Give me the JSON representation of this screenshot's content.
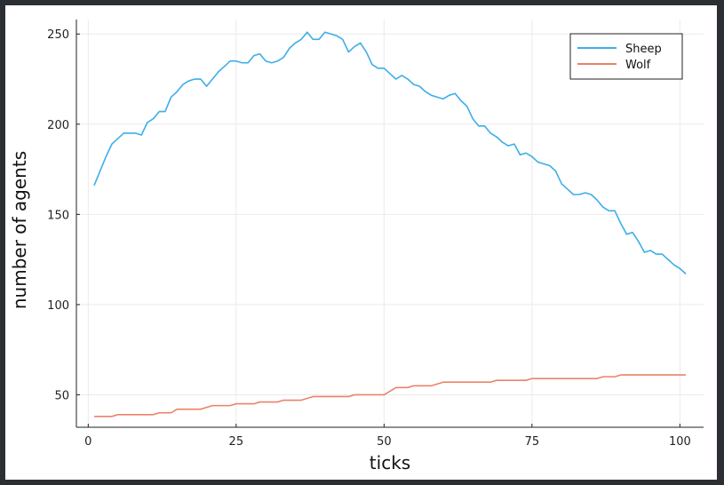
{
  "chart_data": {
    "type": "line",
    "title": "",
    "xlabel": "ticks",
    "ylabel": "number of agents",
    "xlim": [
      -2,
      104
    ],
    "ylim": [
      32,
      258
    ],
    "xticks": [
      0,
      25,
      50,
      75,
      100
    ],
    "yticks": [
      50,
      100,
      150,
      200,
      250
    ],
    "grid": true,
    "legend_position": "top-right",
    "x": [
      1,
      2,
      3,
      4,
      5,
      6,
      7,
      8,
      9,
      10,
      11,
      12,
      13,
      14,
      15,
      16,
      17,
      18,
      19,
      20,
      21,
      22,
      23,
      24,
      25,
      26,
      27,
      28,
      29,
      30,
      31,
      32,
      33,
      34,
      35,
      36,
      37,
      38,
      39,
      40,
      41,
      42,
      43,
      44,
      45,
      46,
      47,
      48,
      49,
      50,
      51,
      52,
      53,
      54,
      55,
      56,
      57,
      58,
      59,
      60,
      61,
      62,
      63,
      64,
      65,
      66,
      67,
      68,
      69,
      70,
      71,
      72,
      73,
      74,
      75,
      76,
      77,
      78,
      79,
      80,
      81,
      82,
      83,
      84,
      85,
      86,
      87,
      88,
      89,
      90,
      91,
      92,
      93,
      94,
      95,
      96,
      97,
      98,
      99,
      100,
      101
    ],
    "series": [
      {
        "name": "Sheep",
        "color": "#3daee9",
        "values": [
          166,
          174,
          182,
          189,
          192,
          195,
          195,
          195,
          194,
          201,
          203,
          207,
          207,
          215,
          218,
          222,
          224,
          225,
          225,
          221,
          225,
          229,
          232,
          235,
          235,
          234,
          234,
          238,
          239,
          235,
          234,
          235,
          237,
          242,
          245,
          247,
          251,
          247,
          247,
          251,
          250,
          249,
          247,
          240,
          243,
          245,
          240,
          233,
          231,
          231,
          228,
          225,
          227,
          225,
          222,
          221,
          218,
          216,
          215,
          214,
          216,
          217,
          213,
          210,
          203,
          199,
          199,
          195,
          193,
          190,
          188,
          189,
          183,
          184,
          182,
          179,
          178,
          177,
          174,
          167,
          164,
          161,
          161,
          162,
          161,
          158,
          154,
          152,
          152,
          145,
          139,
          140,
          135,
          129,
          130,
          128,
          128,
          125,
          122,
          120,
          117
        ]
      },
      {
        "name": "Wolf",
        "color": "#e9836a",
        "values": [
          38,
          38,
          38,
          38,
          39,
          39,
          39,
          39,
          39,
          39,
          39,
          40,
          40,
          40,
          42,
          42,
          42,
          42,
          42,
          43,
          44,
          44,
          44,
          44,
          45,
          45,
          45,
          45,
          46,
          46,
          46,
          46,
          47,
          47,
          47,
          47,
          48,
          49,
          49,
          49,
          49,
          49,
          49,
          49,
          50,
          50,
          50,
          50,
          50,
          50,
          52,
          54,
          54,
          54,
          55,
          55,
          55,
          55,
          56,
          57,
          57,
          57,
          57,
          57,
          57,
          57,
          57,
          57,
          58,
          58,
          58,
          58,
          58,
          58,
          59,
          59,
          59,
          59,
          59,
          59,
          59,
          59,
          59,
          59,
          59,
          59,
          60,
          60,
          60,
          61,
          61,
          61,
          61,
          61,
          61,
          61,
          61,
          61,
          61,
          61,
          61
        ]
      }
    ]
  }
}
